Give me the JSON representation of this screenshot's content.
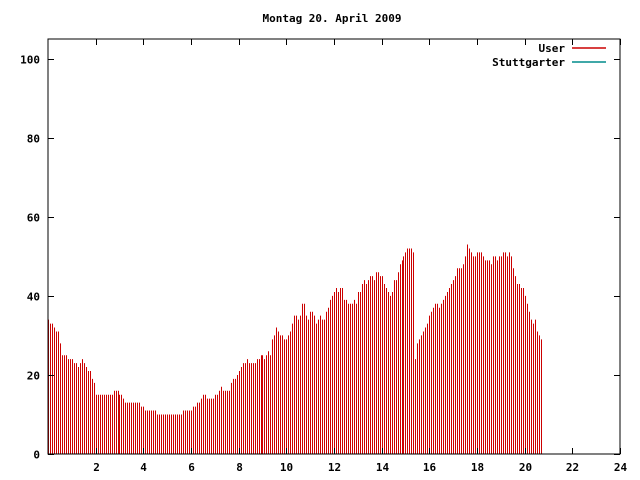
{
  "chart_data": {
    "type": "bar",
    "title": "Montag 20. April 2009",
    "xlabel": "",
    "ylabel": "",
    "xlim": [
      0,
      24
    ],
    "ylim": [
      0,
      105
    ],
    "x_ticks": [
      2,
      4,
      6,
      8,
      10,
      12,
      14,
      16,
      18,
      20,
      22,
      24
    ],
    "y_ticks": [
      0,
      20,
      40,
      60,
      80,
      100
    ],
    "grid": false,
    "legend_position": "top-right",
    "series": [
      {
        "name": "User",
        "color": "#cc0000",
        "x_start": 0,
        "x_step": 0.08333,
        "values": [
          34,
          33,
          33,
          32,
          31,
          31,
          28,
          25,
          25,
          25,
          24,
          24,
          24,
          23,
          23,
          22,
          23,
          24,
          23,
          22,
          21,
          21,
          19,
          18,
          15,
          15,
          15,
          15,
          15,
          15,
          15,
          15,
          15,
          16,
          16,
          16,
          15,
          15,
          14,
          13,
          13,
          13,
          13,
          13,
          13,
          13,
          13,
          12,
          12,
          11,
          11,
          11,
          11,
          11,
          11,
          10,
          10,
          10,
          10,
          10,
          10,
          10,
          10,
          10,
          10,
          10,
          10,
          10,
          11,
          11,
          11,
          11,
          11,
          12,
          12,
          13,
          13,
          14,
          15,
          15,
          14,
          14,
          14,
          14,
          15,
          15,
          16,
          17,
          16,
          16,
          16,
          16,
          18,
          19,
          19,
          20,
          21,
          22,
          23,
          23,
          24,
          23,
          23,
          23,
          23,
          24,
          24,
          25,
          25,
          24,
          25,
          26,
          25,
          29,
          30,
          32,
          31,
          30,
          30,
          29,
          29,
          30,
          31,
          33,
          35,
          35,
          34,
          35,
          38,
          38,
          35,
          34,
          36,
          36,
          35,
          33,
          34,
          35,
          34,
          34,
          36,
          37,
          39,
          40,
          41,
          42,
          41,
          42,
          42,
          39,
          39,
          38,
          38,
          38,
          39,
          38,
          41,
          41,
          43,
          44,
          43,
          44,
          45,
          45,
          44,
          46,
          46,
          45,
          45,
          43,
          42,
          41,
          40,
          41,
          44,
          44,
          46,
          48,
          49,
          50,
          51,
          52,
          52,
          52,
          51,
          24,
          28,
          29,
          30,
          31,
          32,
          33,
          35,
          36,
          37,
          38,
          38,
          37,
          38,
          39,
          40,
          41,
          42,
          43,
          44,
          45,
          47,
          47,
          47,
          48,
          50,
          53,
          52,
          51,
          50,
          50,
          51,
          51,
          51,
          50,
          49,
          49,
          49,
          48,
          50,
          50,
          49,
          50,
          50,
          51,
          51,
          50,
          51,
          50,
          47,
          45,
          43,
          43,
          42,
          42,
          40,
          38,
          36,
          34,
          33,
          34,
          31,
          30,
          29
        ]
      },
      {
        "name": "Stuttgarter",
        "color": "#008b8b",
        "values": []
      }
    ]
  }
}
